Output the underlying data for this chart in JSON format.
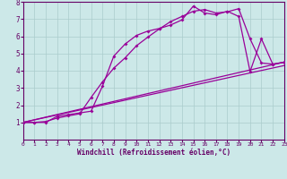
{
  "xlabel": "Windchill (Refroidissement éolien,°C)",
  "bg_color": "#cce8e8",
  "line_color": "#990099",
  "grid_color": "#aacccc",
  "axis_color": "#660066",
  "xlim": [
    0,
    23
  ],
  "ylim": [
    0,
    8
  ],
  "xticks": [
    0,
    1,
    2,
    3,
    4,
    5,
    6,
    7,
    8,
    9,
    10,
    11,
    12,
    13,
    14,
    15,
    16,
    17,
    18,
    19,
    20,
    21,
    22,
    23
  ],
  "yticks": [
    1,
    2,
    3,
    4,
    5,
    6,
    7,
    8
  ],
  "line1_x": [
    0,
    1,
    2,
    3,
    4,
    5,
    6,
    7,
    8,
    9,
    10,
    11,
    12,
    13,
    14,
    15,
    16,
    17,
    18,
    19,
    20,
    21,
    22,
    23
  ],
  "line1_y": [
    1,
    1,
    1,
    1.35,
    1.45,
    1.55,
    1.65,
    3.1,
    4.85,
    5.55,
    6.05,
    6.3,
    6.45,
    6.65,
    6.95,
    7.75,
    7.35,
    7.25,
    7.45,
    7.15,
    3.95,
    5.85,
    4.38,
    4.5
  ],
  "line2_x": [
    0,
    1,
    2,
    3,
    4,
    5,
    6,
    7,
    8,
    9,
    10,
    11,
    12,
    13,
    14,
    15,
    16,
    17,
    18,
    19,
    20,
    21,
    22,
    23
  ],
  "line2_y": [
    1,
    1,
    1.05,
    1.25,
    1.38,
    1.5,
    2.45,
    3.35,
    4.15,
    4.75,
    5.45,
    5.95,
    6.42,
    6.85,
    7.15,
    7.45,
    7.55,
    7.35,
    7.42,
    7.6,
    5.85,
    4.45,
    4.38,
    4.48
  ],
  "line3_x": [
    0,
    23
  ],
  "line3_y": [
    1,
    4.5
  ],
  "line4_x": [
    0,
    23
  ],
  "line4_y": [
    1,
    4.3
  ]
}
